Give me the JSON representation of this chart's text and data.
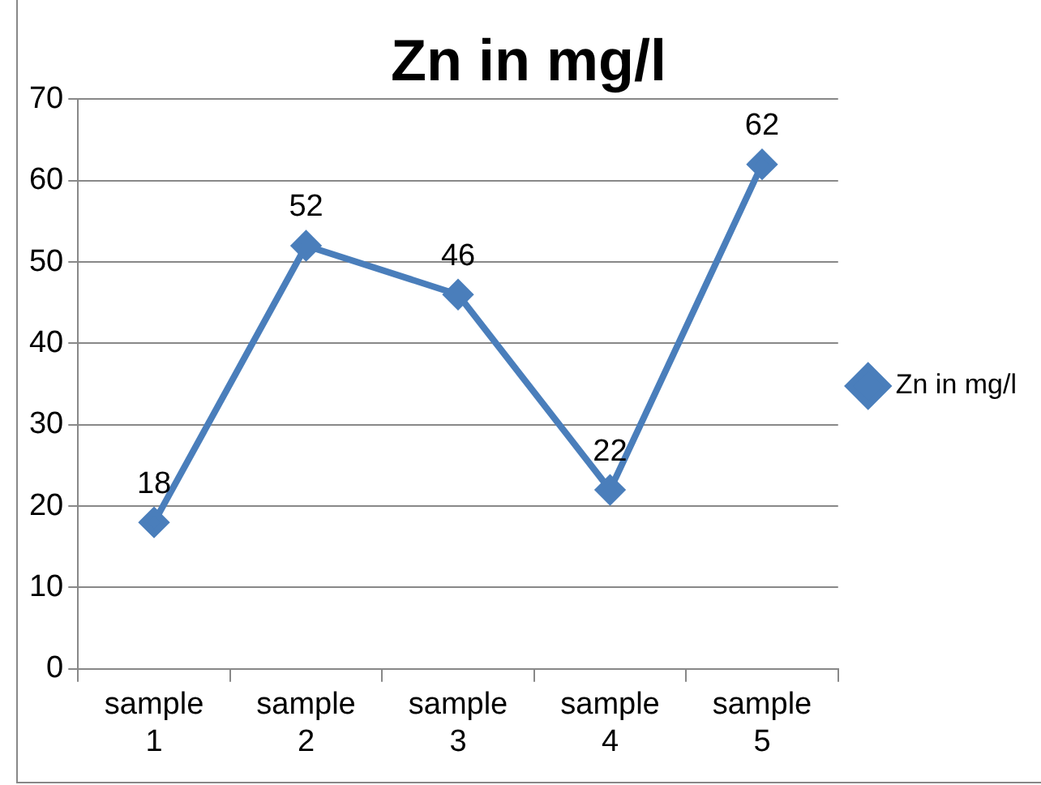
{
  "chart_data": {
    "type": "line",
    "title": "Zn in mg/l",
    "categories": [
      "sample 1",
      "sample 2",
      "sample 3",
      "sample 4",
      "sample 5"
    ],
    "series": [
      {
        "name": "Zn in mg/l",
        "color": "#4a7ebb",
        "values": [
          18,
          52,
          46,
          22,
          62
        ]
      }
    ],
    "ylim": [
      0,
      70
    ],
    "yticks": [
      0,
      10,
      20,
      30,
      40,
      50,
      60,
      70
    ],
    "grid": "y",
    "legend": "right",
    "marker": "diamond",
    "line_style": "solid",
    "data_labels": true
  }
}
